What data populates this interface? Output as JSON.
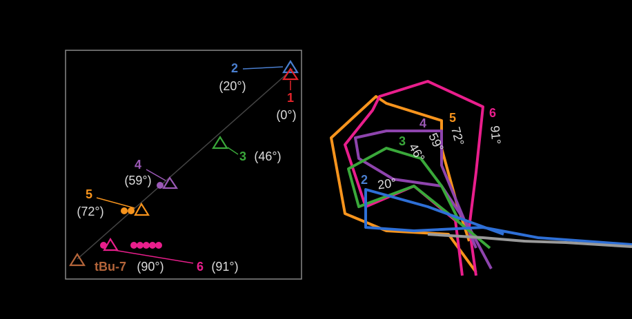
{
  "left_panel": {
    "points": [
      {
        "label": "1",
        "angle": "(0°)"
      },
      {
        "label": "2",
        "angle": "(20°)"
      },
      {
        "label": "3",
        "angle": "(46°)"
      },
      {
        "label": "4",
        "angle": "(59°)"
      },
      {
        "label": "5",
        "angle": "(72°)"
      },
      {
        "label": "6",
        "angle": "(91°)"
      },
      {
        "label": "tBu-7",
        "angle": "(90°)"
      }
    ]
  },
  "right_panel": {
    "overlays": [
      {
        "label": "2",
        "angle": "20°"
      },
      {
        "label": "3",
        "angle": "46°"
      },
      {
        "label": "4",
        "angle": "59°"
      },
      {
        "label": "5",
        "angle": "72°"
      },
      {
        "label": "6",
        "angle": "91°"
      }
    ]
  }
}
